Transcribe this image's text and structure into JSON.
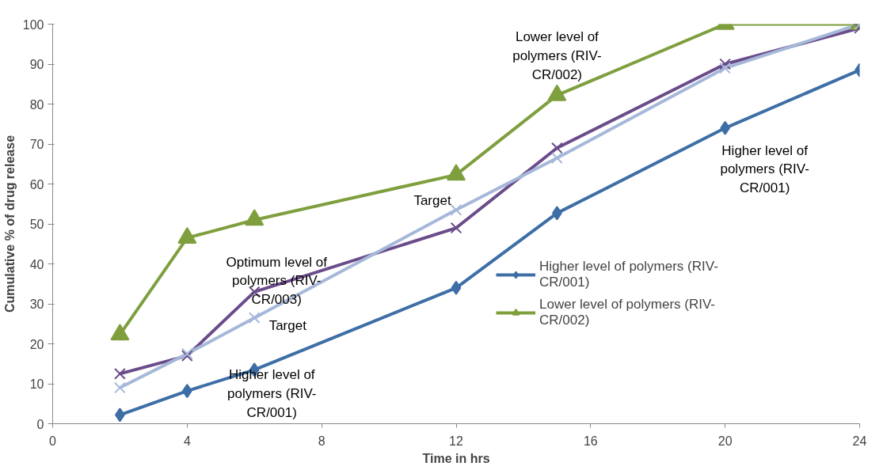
{
  "chart_data": {
    "type": "line",
    "xlabel": "Time in hrs",
    "ylabel": "Cumulative % of drug release",
    "x": [
      2,
      4,
      6,
      12,
      15,
      20,
      24
    ],
    "xlim": [
      0,
      24
    ],
    "xticks": [
      0,
      4,
      8,
      12,
      16,
      20,
      24
    ],
    "ylim": [
      0,
      100
    ],
    "yticks": [
      0,
      10,
      20,
      30,
      40,
      50,
      60,
      70,
      80,
      90,
      100
    ],
    "grid": false,
    "legend": "right",
    "series": [
      {
        "name": "Higher level of polymers (RIV-CR/001)",
        "color": "#3d6ea6",
        "marker": "diamond",
        "values": [
          2.2,
          8.2,
          13.5,
          34,
          52.7,
          74,
          88.5
        ]
      },
      {
        "name": "Lower level of polymers (RIV-CR/002)",
        "color": "#7f9f3f",
        "marker": "triangle",
        "values": [
          22.3,
          46.5,
          51,
          62.3,
          82.2,
          100,
          100
        ]
      },
      {
        "color": "#6a4c8a",
        "marker": "cross",
        "values": [
          12.5,
          17,
          33,
          49,
          69,
          90,
          99
        ]
      },
      {
        "color": "#a6b8d9",
        "marker": "cross",
        "values": [
          9,
          17.5,
          26.5,
          53.5,
          66.5,
          89,
          100
        ]
      }
    ],
    "annotations": [
      {
        "text": "Higher level of polymers (RIV-CR/001)",
        "x": 6,
        "y": 13.5
      },
      {
        "text": "Optimum level of polymers (RIV-CR/003)",
        "x": 6,
        "y": 33
      },
      {
        "text": "Target",
        "x": 6,
        "y": 26.5
      },
      {
        "text": "Target",
        "x": 12,
        "y": 53.5
      },
      {
        "text": "Lower level of polymers (RIV-CR/002)",
        "x": 15,
        "y": 82.2
      },
      {
        "text": "Higher level of polymers (RIV-CR/001)",
        "x": 20,
        "y": 74
      }
    ]
  }
}
